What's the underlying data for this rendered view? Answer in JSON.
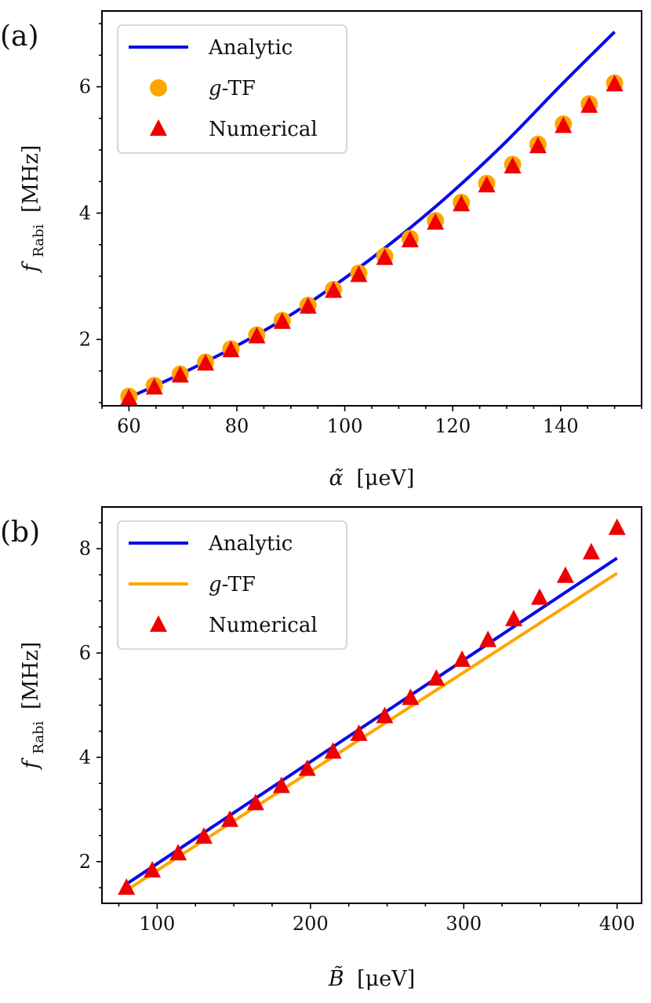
{
  "colors": {
    "analytic": "#0a0ae6",
    "gtf": "#ffa500",
    "numerical": "#ee0000",
    "axes": "#000000"
  },
  "chart_data": [
    {
      "panel_label": "(a)",
      "type": "line+scatter",
      "xlabel_main": "α̃",
      "xlabel_unit": "[μeV]",
      "ylabel_main": "f",
      "ylabel_sub": "Rabi",
      "ylabel_unit": "[MHz]",
      "xlim": [
        55,
        155
      ],
      "ylim": [
        0.95,
        7.2
      ],
      "xticks": [
        60,
        80,
        100,
        120,
        140
      ],
      "xtick_labels": [
        "60",
        "80",
        "100",
        "120",
        "140"
      ],
      "yticks": [
        2,
        4,
        6
      ],
      "ytick_labels": [
        "2",
        "4",
        "6"
      ],
      "legend": [
        {
          "key": "analytic",
          "label_prefix": "",
          "label": "Analytic",
          "marker": "line"
        },
        {
          "key": "gtf",
          "label_prefix": "g",
          "label": "-TF",
          "marker": "circle"
        },
        {
          "key": "numerical",
          "label_prefix": "",
          "label": "Numerical",
          "marker": "triangle"
        }
      ],
      "series": [
        {
          "key": "analytic",
          "name": "Analytic",
          "style": "line",
          "x": [
            60,
            70,
            80,
            90,
            100,
            110,
            120,
            130,
            140,
            150
          ],
          "y": [
            1.08,
            1.47,
            1.9,
            2.39,
            2.97,
            3.62,
            4.34,
            5.14,
            6.02,
            6.87
          ]
        },
        {
          "key": "gtf",
          "name": "g-TF",
          "style": "circle",
          "x": [
            60,
            64.7,
            69.5,
            74.2,
            78.9,
            83.7,
            88.4,
            93.2,
            97.9,
            102.6,
            107.4,
            112.1,
            116.8,
            121.6,
            126.3,
            131.1,
            135.8,
            140.5,
            145.3,
            150
          ],
          "y": [
            1.1,
            1.27,
            1.45,
            1.64,
            1.85,
            2.07,
            2.3,
            2.54,
            2.79,
            3.05,
            3.32,
            3.6,
            3.88,
            4.17,
            4.47,
            4.77,
            5.09,
            5.41,
            5.73,
            6.06
          ]
        },
        {
          "key": "numerical",
          "name": "Numerical",
          "style": "triangle",
          "x": [
            60,
            64.7,
            69.5,
            74.2,
            78.9,
            83.7,
            88.4,
            93.2,
            97.9,
            102.6,
            107.4,
            112.1,
            116.8,
            121.6,
            126.3,
            131.1,
            135.8,
            140.5,
            145.3,
            150
          ],
          "y": [
            1.07,
            1.24,
            1.43,
            1.62,
            1.83,
            2.05,
            2.28,
            2.52,
            2.77,
            3.02,
            3.29,
            3.57,
            3.85,
            4.14,
            4.44,
            4.74,
            5.06,
            5.38,
            5.7,
            6.04
          ]
        }
      ]
    },
    {
      "panel_label": "(b)",
      "type": "line+scatter",
      "xlabel_main": "B̃",
      "xlabel_unit": "[μeV]",
      "ylabel_main": "f",
      "ylabel_sub": "Rabi",
      "ylabel_unit": "[MHz]",
      "xlim": [
        64,
        416
      ],
      "ylim": [
        1.2,
        8.8
      ],
      "xticks": [
        100,
        200,
        300,
        400
      ],
      "xtick_labels": [
        "100",
        "200",
        "300",
        "400"
      ],
      "yticks": [
        2,
        4,
        6,
        8
      ],
      "ytick_labels": [
        "2",
        "4",
        "6",
        "8"
      ],
      "legend": [
        {
          "key": "analytic",
          "label_prefix": "",
          "label": "Analytic",
          "marker": "line"
        },
        {
          "key": "gtf",
          "label_prefix": "g",
          "label": "-TF",
          "marker": "line"
        },
        {
          "key": "numerical",
          "label_prefix": "",
          "label": "Numerical",
          "marker": "triangle"
        }
      ],
      "series": [
        {
          "key": "analytic",
          "name": "Analytic",
          "style": "line",
          "x": [
            80,
            400
          ],
          "y": [
            1.57,
            7.82
          ]
        },
        {
          "key": "gtf",
          "name": "g-TF",
          "style": "line",
          "x": [
            80,
            400
          ],
          "y": [
            1.45,
            7.53
          ]
        },
        {
          "key": "numerical",
          "name": "Numerical",
          "style": "triangle",
          "x": [
            80,
            96.8,
            113.7,
            130.5,
            147.4,
            164.2,
            181.1,
            197.9,
            214.7,
            231.6,
            248.4,
            265.3,
            282.1,
            298.9,
            315.8,
            332.6,
            349.5,
            366.3,
            383.2,
            400
          ],
          "y": [
            1.5,
            1.83,
            2.16,
            2.48,
            2.8,
            3.12,
            3.45,
            3.78,
            4.11,
            4.45,
            4.79,
            5.14,
            5.51,
            5.87,
            6.25,
            6.65,
            7.06,
            7.48,
            7.93,
            8.4
          ]
        }
      ]
    }
  ]
}
